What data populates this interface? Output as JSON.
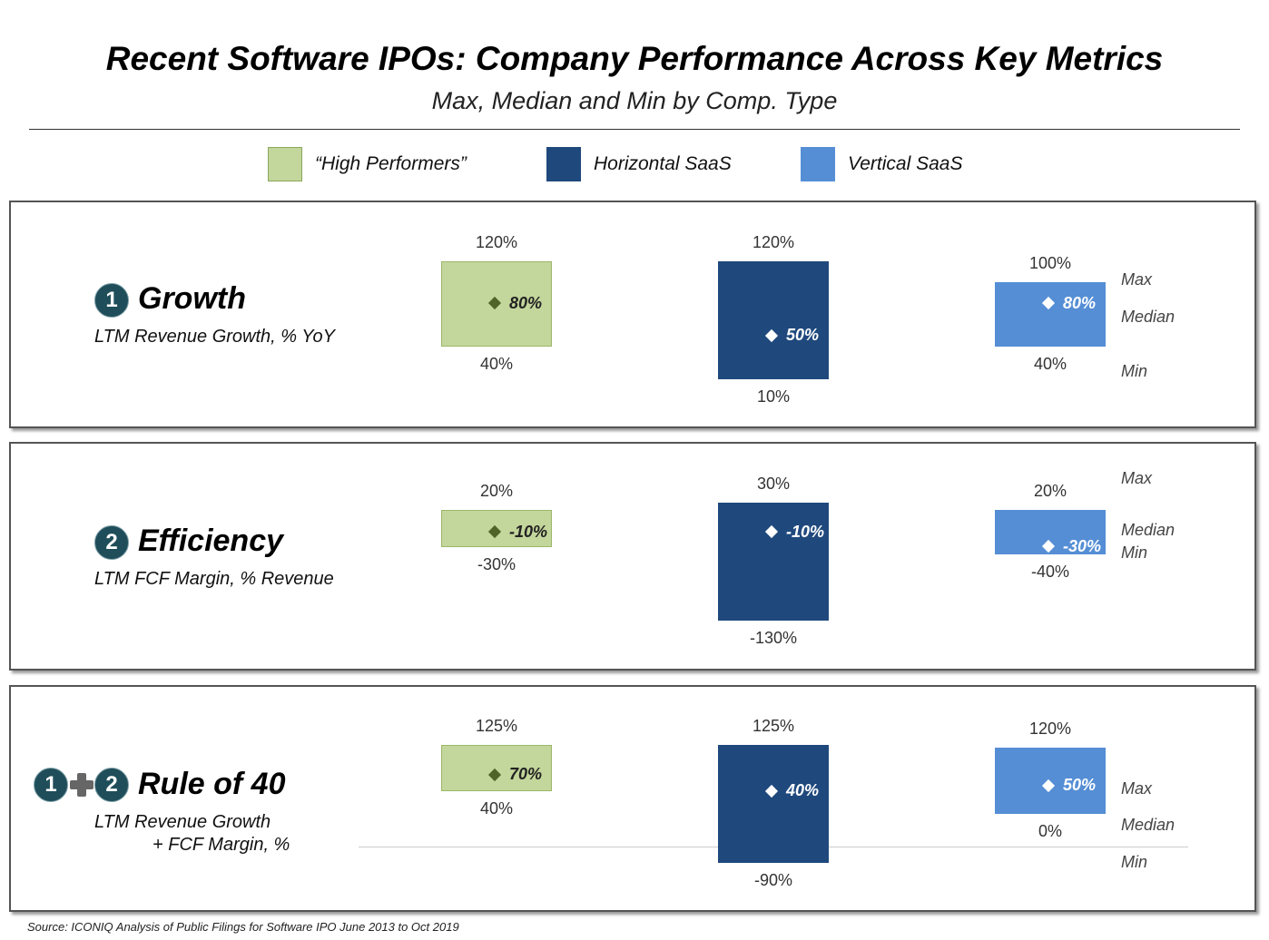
{
  "header": {
    "title": "Recent Software IPOs: Company Performance Across Key Metrics",
    "subtitle": "Max, Median and Min by Comp. Type"
  },
  "legend": [
    {
      "label": "“High Performers”",
      "color": "#c3d69b"
    },
    {
      "label": "Horizontal SaaS",
      "color": "#1f497d"
    },
    {
      "label": "Vertical SaaS",
      "color": "#558ed5"
    }
  ],
  "key_labels": {
    "max": "Max",
    "median": "Median",
    "min": "Min"
  },
  "panels": [
    {
      "badges": [
        "1"
      ],
      "title": "Growth",
      "subtitle_lines": [
        "LTM Revenue Growth, % YoY"
      ]
    },
    {
      "badges": [
        "2"
      ],
      "title": "Efficiency",
      "subtitle_lines": [
        "LTM FCF Margin, % Revenue"
      ]
    },
    {
      "badges": [
        "1",
        "2"
      ],
      "title": "Rule of 40",
      "subtitle_lines": [
        "LTM Revenue Growth",
        "+ FCF Margin, %"
      ]
    }
  ],
  "chart_data": {
    "type": "floating-bar",
    "title": "Recent Software IPOs: Company Performance Across Key Metrics",
    "subtitle": "Max, Median and Min by Comp. Type",
    "categories": [
      "“High Performers”",
      "Horizontal SaaS",
      "Vertical SaaS"
    ],
    "unit": "%",
    "metrics": [
      {
        "name": "Growth",
        "series": [
          {
            "category": "“High Performers”",
            "max": 120,
            "median": 80,
            "min": 40,
            "max_label": "120%",
            "median_label": "80%",
            "min_label": "40%"
          },
          {
            "category": "Horizontal SaaS",
            "max": 120,
            "median": 50,
            "min": 10,
            "max_label": "120%",
            "median_label": "50%",
            "min_label": "10%"
          },
          {
            "category": "Vertical SaaS",
            "max": 100,
            "median": 80,
            "min": 40,
            "max_label": "100%",
            "median_label": "80%",
            "min_label": "40%"
          }
        ]
      },
      {
        "name": "Efficiency",
        "series": [
          {
            "category": "“High Performers”",
            "max": 20,
            "median": -10,
            "min": -30,
            "max_label": "20%",
            "median_label": "-10%",
            "min_label": "-30%"
          },
          {
            "category": "Horizontal SaaS",
            "max": 30,
            "median": -10,
            "min": -130,
            "max_label": "30%",
            "median_label": "-10%",
            "min_label": "-130%"
          },
          {
            "category": "Vertical SaaS",
            "max": 20,
            "median": -30,
            "min": -40,
            "max_label": "20%",
            "median_label": "-30%",
            "min_label": "-40%"
          }
        ]
      },
      {
        "name": "Rule of 40",
        "series": [
          {
            "category": "“High Performers”",
            "max": 125,
            "median": 70,
            "min": 40,
            "max_label": "125%",
            "median_label": "70%",
            "min_label": "40%"
          },
          {
            "category": "Horizontal SaaS",
            "max": 125,
            "median": 40,
            "min": -90,
            "max_label": "125%",
            "median_label": "40%",
            "min_label": "-90%"
          },
          {
            "category": "Vertical SaaS",
            "max": 120,
            "median": 50,
            "min": 0,
            "max_label": "120%",
            "median_label": "50%",
            "min_label": "0%"
          }
        ]
      }
    ]
  },
  "footer": {
    "source": "Source:  ICONIQ Analysis of Public Filings for Software IPO June 2013 to Oct 2019"
  }
}
